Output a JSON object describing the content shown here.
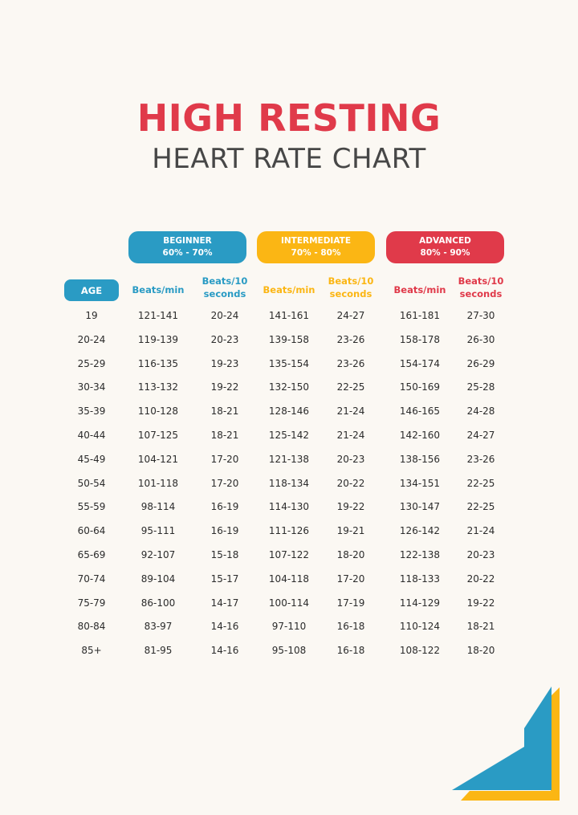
{
  "title": "HIGH RESTING",
  "subtitle": "HEART RATE CHART",
  "levels": [
    {
      "name": "BEGINNER",
      "range": "60% - 70%",
      "color": "#2a9bc4"
    },
    {
      "name": "INTERMEDIATE",
      "range": "70% - 80%",
      "color": "#fbb614"
    },
    {
      "name": "ADVANCED",
      "range": "80% - 90%",
      "color": "#e03a4a"
    }
  ],
  "age_header": "AGE",
  "sub_headers": [
    "Beats/min",
    "Beats/10 seconds"
  ],
  "rows": [
    [
      "19",
      "121-141",
      "20-24",
      "141-161",
      "24-27",
      "161-181",
      "27-30"
    ],
    [
      "20-24",
      "119-139",
      "20-23",
      "139-158",
      "23-26",
      "158-178",
      "26-30"
    ],
    [
      "25-29",
      "116-135",
      "19-23",
      "135-154",
      "23-26",
      "154-174",
      "26-29"
    ],
    [
      "30-34",
      "113-132",
      "19-22",
      "132-150",
      "22-25",
      "150-169",
      "25-28"
    ],
    [
      "35-39",
      "110-128",
      "18-21",
      "128-146",
      "21-24",
      "146-165",
      "24-28"
    ],
    [
      "40-44",
      "107-125",
      "18-21",
      "125-142",
      "21-24",
      "142-160",
      "24-27"
    ],
    [
      "45-49",
      "104-121",
      "17-20",
      "121-138",
      "20-23",
      "138-156",
      "23-26"
    ],
    [
      "50-54",
      "101-118",
      "17-20",
      "118-134",
      "20-22",
      "134-151",
      "22-25"
    ],
    [
      "55-59",
      "98-114",
      "16-19",
      "114-130",
      "19-22",
      "130-147",
      "22-25"
    ],
    [
      "60-64",
      "95-111",
      "16-19",
      "111-126",
      "19-21",
      "126-142",
      "21-24"
    ],
    [
      "65-69",
      "92-107",
      "15-18",
      "107-122",
      "18-20",
      "122-138",
      "20-23"
    ],
    [
      "70-74",
      "89-104",
      "15-17",
      "104-118",
      "17-20",
      "118-133",
      "20-22"
    ],
    [
      "75-79",
      "86-100",
      "14-17",
      "100-114",
      "17-19",
      "114-129",
      "19-22"
    ],
    [
      "80-84",
      "83-97",
      "14-16",
      "97-110",
      "16-18",
      "110-124",
      "18-21"
    ],
    [
      "85+",
      "81-95",
      "14-16",
      "95-108",
      "16-18",
      "108-122",
      "18-20"
    ]
  ],
  "colors": {
    "background": "#fbf8f3",
    "title": "#e03a4a",
    "subtitle": "#474747",
    "beginner": "#2a9bc4",
    "intermediate": "#fbb614",
    "advanced": "#e03a4a"
  }
}
